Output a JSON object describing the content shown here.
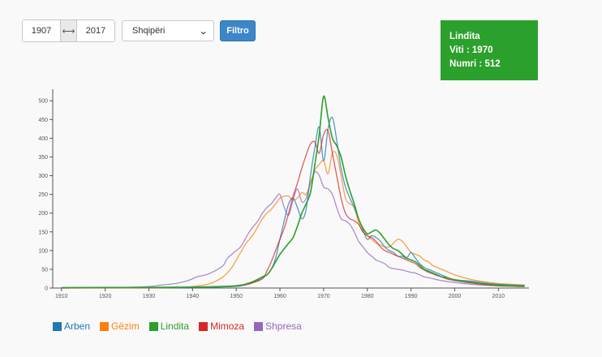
{
  "filters": {
    "year_from": "1907",
    "year_to": "2017",
    "range_icon": "⟷",
    "country": "Shqipëri",
    "filter_label": "Filtro"
  },
  "tooltip": {
    "name": "Lindita",
    "year_text": "Viti : 1970",
    "count_text": "Numri : 512"
  },
  "chart_data": {
    "type": "line",
    "title": "",
    "xlabel": "",
    "ylabel": "",
    "xlim": [
      1908,
      2017
    ],
    "ylim": [
      0,
      520
    ],
    "xticks": [
      1910,
      1920,
      1930,
      1940,
      1950,
      1960,
      1970,
      1980,
      1990,
      2000,
      2010
    ],
    "yticks": [
      0,
      50,
      100,
      150,
      200,
      250,
      300,
      350,
      400,
      450,
      500
    ],
    "grid": false,
    "legend_position": "bottom-left",
    "series": [
      {
        "name": "Arben",
        "color": "#1f77b4",
        "points": [
          [
            1910,
            1
          ],
          [
            1930,
            2
          ],
          [
            1940,
            3
          ],
          [
            1948,
            5
          ],
          [
            1952,
            10
          ],
          [
            1955,
            20
          ],
          [
            1957,
            35
          ],
          [
            1958,
            50
          ],
          [
            1959,
            80
          ],
          [
            1960,
            130
          ],
          [
            1961,
            180
          ],
          [
            1962,
            225
          ],
          [
            1963,
            240
          ],
          [
            1964,
            215
          ],
          [
            1965,
            185
          ],
          [
            1966,
            210
          ],
          [
            1967,
            300
          ],
          [
            1968,
            375
          ],
          [
            1969,
            430
          ],
          [
            1970,
            340
          ],
          [
            1971,
            425
          ],
          [
            1972,
            455
          ],
          [
            1973,
            395
          ],
          [
            1974,
            320
          ],
          [
            1975,
            270
          ],
          [
            1976,
            240
          ],
          [
            1977,
            215
          ],
          [
            1978,
            185
          ],
          [
            1979,
            155
          ],
          [
            1980,
            130
          ],
          [
            1981,
            140
          ],
          [
            1982,
            135
          ],
          [
            1983,
            125
          ],
          [
            1984,
            110
          ],
          [
            1985,
            100
          ],
          [
            1986,
            95
          ],
          [
            1987,
            85
          ],
          [
            1988,
            85
          ],
          [
            1989,
            80
          ],
          [
            1990,
            95
          ],
          [
            1991,
            80
          ],
          [
            1992,
            65
          ],
          [
            1993,
            55
          ],
          [
            1994,
            50
          ],
          [
            1995,
            45
          ],
          [
            1996,
            40
          ],
          [
            1997,
            35
          ],
          [
            1998,
            30
          ],
          [
            1999,
            25
          ],
          [
            2000,
            22
          ],
          [
            2002,
            20
          ],
          [
            2004,
            18
          ],
          [
            2006,
            15
          ],
          [
            2008,
            12
          ],
          [
            2010,
            10
          ],
          [
            2013,
            8
          ],
          [
            2016,
            7
          ]
        ]
      },
      {
        "name": "Gëzim",
        "color": "#ff7f0e",
        "points": [
          [
            1910,
            0
          ],
          [
            1935,
            1
          ],
          [
            1940,
            4
          ],
          [
            1944,
            12
          ],
          [
            1947,
            30
          ],
          [
            1949,
            55
          ],
          [
            1950,
            75
          ],
          [
            1951,
            95
          ],
          [
            1952,
            115
          ],
          [
            1953,
            130
          ],
          [
            1954,
            145
          ],
          [
            1955,
            165
          ],
          [
            1956,
            185
          ],
          [
            1957,
            200
          ],
          [
            1958,
            210
          ],
          [
            1959,
            225
          ],
          [
            1960,
            240
          ],
          [
            1961,
            245
          ],
          [
            1962,
            245
          ],
          [
            1963,
            235
          ],
          [
            1964,
            240
          ],
          [
            1965,
            255
          ],
          [
            1966,
            250
          ],
          [
            1967,
            280
          ],
          [
            1968,
            315
          ],
          [
            1969,
            330
          ],
          [
            1970,
            340
          ],
          [
            1971,
            305
          ],
          [
            1972,
            360
          ],
          [
            1973,
            355
          ],
          [
            1974,
            300
          ],
          [
            1975,
            240
          ],
          [
            1976,
            225
          ],
          [
            1977,
            215
          ],
          [
            1978,
            175
          ],
          [
            1979,
            150
          ],
          [
            1980,
            140
          ],
          [
            1981,
            130
          ],
          [
            1982,
            120
          ],
          [
            1983,
            115
          ],
          [
            1984,
            110
          ],
          [
            1985,
            110
          ],
          [
            1986,
            120
          ],
          [
            1987,
            130
          ],
          [
            1988,
            125
          ],
          [
            1989,
            110
          ],
          [
            1990,
            95
          ],
          [
            1991,
            90
          ],
          [
            1992,
            85
          ],
          [
            1993,
            75
          ],
          [
            1994,
            70
          ],
          [
            1995,
            60
          ],
          [
            1996,
            55
          ],
          [
            1997,
            50
          ],
          [
            1998,
            45
          ],
          [
            1999,
            40
          ],
          [
            2000,
            35
          ],
          [
            2002,
            28
          ],
          [
            2004,
            22
          ],
          [
            2006,
            18
          ],
          [
            2008,
            15
          ],
          [
            2010,
            12
          ],
          [
            2013,
            10
          ],
          [
            2016,
            8
          ]
        ]
      },
      {
        "name": "Lindita",
        "color": "#2ca02c",
        "points": [
          [
            1910,
            1
          ],
          [
            1940,
            2
          ],
          [
            1950,
            5
          ],
          [
            1952,
            10
          ],
          [
            1954,
            18
          ],
          [
            1956,
            30
          ],
          [
            1957,
            35
          ],
          [
            1958,
            50
          ],
          [
            1959,
            70
          ],
          [
            1960,
            90
          ],
          [
            1961,
            105
          ],
          [
            1962,
            120
          ],
          [
            1963,
            135
          ],
          [
            1964,
            165
          ],
          [
            1965,
            200
          ],
          [
            1966,
            225
          ],
          [
            1967,
            255
          ],
          [
            1968,
            330
          ],
          [
            1969,
            410
          ],
          [
            1970,
            512
          ],
          [
            1971,
            455
          ],
          [
            1972,
            400
          ],
          [
            1973,
            380
          ],
          [
            1974,
            350
          ],
          [
            1975,
            300
          ],
          [
            1976,
            260
          ],
          [
            1977,
            225
          ],
          [
            1978,
            185
          ],
          [
            1979,
            160
          ],
          [
            1980,
            145
          ],
          [
            1981,
            150
          ],
          [
            1982,
            155
          ],
          [
            1983,
            145
          ],
          [
            1984,
            130
          ],
          [
            1985,
            115
          ],
          [
            1986,
            105
          ],
          [
            1987,
            100
          ],
          [
            1988,
            90
          ],
          [
            1989,
            80
          ],
          [
            1990,
            75
          ],
          [
            1991,
            70
          ],
          [
            1992,
            60
          ],
          [
            1993,
            50
          ],
          [
            1994,
            45
          ],
          [
            1995,
            40
          ],
          [
            1996,
            35
          ],
          [
            1997,
            30
          ],
          [
            1998,
            28
          ],
          [
            1999,
            25
          ],
          [
            2000,
            22
          ],
          [
            2002,
            18
          ],
          [
            2004,
            15
          ],
          [
            2006,
            12
          ],
          [
            2008,
            10
          ],
          [
            2010,
            8
          ],
          [
            2013,
            6
          ],
          [
            2016,
            5
          ]
        ]
      },
      {
        "name": "Mimoza",
        "color": "#d62728",
        "points": [
          [
            1910,
            0
          ],
          [
            1940,
            2
          ],
          [
            1948,
            4
          ],
          [
            1952,
            8
          ],
          [
            1954,
            15
          ],
          [
            1956,
            25
          ],
          [
            1957,
            45
          ],
          [
            1958,
            70
          ],
          [
            1959,
            100
          ],
          [
            1960,
            130
          ],
          [
            1961,
            160
          ],
          [
            1962,
            200
          ],
          [
            1963,
            245
          ],
          [
            1964,
            280
          ],
          [
            1965,
            320
          ],
          [
            1966,
            355
          ],
          [
            1967,
            385
          ],
          [
            1968,
            390
          ],
          [
            1969,
            360
          ],
          [
            1970,
            410
          ],
          [
            1971,
            420
          ],
          [
            1972,
            360
          ],
          [
            1973,
            300
          ],
          [
            1974,
            240
          ],
          [
            1975,
            200
          ],
          [
            1976,
            185
          ],
          [
            1977,
            180
          ],
          [
            1978,
            170
          ],
          [
            1979,
            150
          ],
          [
            1980,
            140
          ],
          [
            1981,
            135
          ],
          [
            1982,
            125
          ],
          [
            1983,
            110
          ],
          [
            1984,
            100
          ],
          [
            1985,
            95
          ],
          [
            1986,
            90
          ],
          [
            1987,
            85
          ],
          [
            1988,
            80
          ],
          [
            1989,
            75
          ],
          [
            1990,
            70
          ],
          [
            1991,
            65
          ],
          [
            1992,
            55
          ],
          [
            1993,
            48
          ],
          [
            1994,
            42
          ],
          [
            1995,
            38
          ],
          [
            1996,
            33
          ],
          [
            1997,
            30
          ],
          [
            1998,
            25
          ],
          [
            1999,
            22
          ],
          [
            2000,
            20
          ],
          [
            2002,
            16
          ],
          [
            2004,
            13
          ],
          [
            2006,
            10
          ],
          [
            2008,
            8
          ],
          [
            2010,
            6
          ],
          [
            2013,
            5
          ],
          [
            2016,
            4
          ]
        ]
      },
      {
        "name": "Shpresa",
        "color": "#9467bd",
        "points": [
          [
            1910,
            0
          ],
          [
            1925,
            2
          ],
          [
            1930,
            4
          ],
          [
            1933,
            8
          ],
          [
            1936,
            12
          ],
          [
            1939,
            20
          ],
          [
            1941,
            30
          ],
          [
            1943,
            35
          ],
          [
            1945,
            45
          ],
          [
            1947,
            60
          ],
          [
            1948,
            80
          ],
          [
            1949,
            90
          ],
          [
            1950,
            100
          ],
          [
            1951,
            110
          ],
          [
            1952,
            130
          ],
          [
            1953,
            150
          ],
          [
            1954,
            165
          ],
          [
            1955,
            180
          ],
          [
            1956,
            200
          ],
          [
            1957,
            215
          ],
          [
            1958,
            225
          ],
          [
            1959,
            240
          ],
          [
            1960,
            250
          ],
          [
            1961,
            215
          ],
          [
            1962,
            195
          ],
          [
            1963,
            235
          ],
          [
            1964,
            265
          ],
          [
            1965,
            230
          ],
          [
            1966,
            240
          ],
          [
            1967,
            280
          ],
          [
            1968,
            310
          ],
          [
            1969,
            300
          ],
          [
            1970,
            270
          ],
          [
            1971,
            265
          ],
          [
            1972,
            250
          ],
          [
            1973,
            215
          ],
          [
            1974,
            185
          ],
          [
            1975,
            180
          ],
          [
            1976,
            170
          ],
          [
            1977,
            150
          ],
          [
            1978,
            125
          ],
          [
            1979,
            110
          ],
          [
            1980,
            95
          ],
          [
            1981,
            85
          ],
          [
            1982,
            75
          ],
          [
            1983,
            70
          ],
          [
            1984,
            65
          ],
          [
            1985,
            55
          ],
          [
            1986,
            52
          ],
          [
            1987,
            50
          ],
          [
            1988,
            48
          ],
          [
            1989,
            45
          ],
          [
            1990,
            42
          ],
          [
            1991,
            40
          ],
          [
            1992,
            35
          ],
          [
            1993,
            30
          ],
          [
            1994,
            28
          ],
          [
            1995,
            25
          ],
          [
            1996,
            22
          ],
          [
            1997,
            20
          ],
          [
            1998,
            18
          ],
          [
            1999,
            16
          ],
          [
            2000,
            15
          ],
          [
            2002,
            12
          ],
          [
            2004,
            10
          ],
          [
            2006,
            8
          ],
          [
            2008,
            7
          ],
          [
            2010,
            6
          ],
          [
            2013,
            5
          ],
          [
            2016,
            4
          ]
        ]
      }
    ]
  }
}
